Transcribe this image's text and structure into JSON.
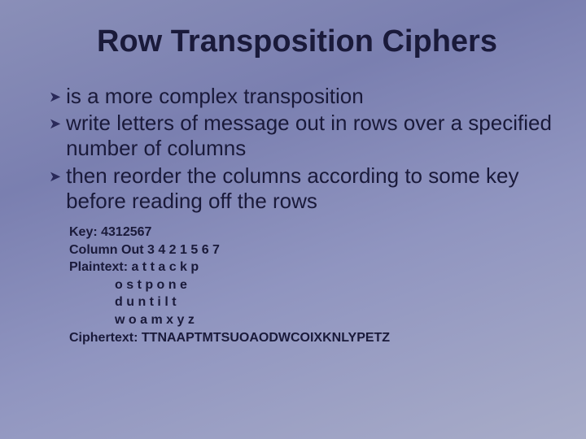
{
  "slide": {
    "title": "Row Transposition Ciphers",
    "background_gradient": [
      "#8a8fb8",
      "#7a7fb0",
      "#9095c0",
      "#a8acc8"
    ],
    "title_color": "#1a1a3a",
    "title_fontsize": 38,
    "bullet_color": "#2a2a5a",
    "text_color": "#1a1a3a",
    "bullet_fontsize": 26,
    "example_fontsize": 16,
    "bullets": [
      "is a more complex transposition",
      "write letters of message out in rows over a specified number of columns",
      "then reorder the columns according to some key before reading off the rows"
    ],
    "example": {
      "key_line": "Key: 4312567",
      "column_out_line": "Column Out 3 4 2 1 5 6 7",
      "plaintext_label": "Plaintext: a t t a c k p",
      "plaintext_rows": [
        "o s t p o n e",
        "d u n t i l t",
        "w o a m x y z"
      ],
      "ciphertext_line": "Ciphertext: TTNAAPTMTSUOAODWCOIXKNLYPETZ"
    }
  }
}
